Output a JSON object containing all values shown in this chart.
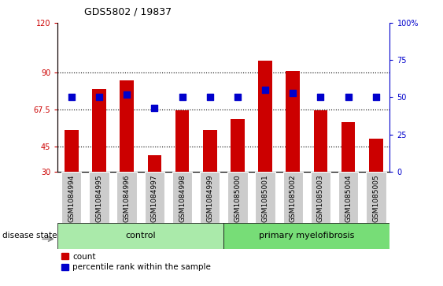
{
  "title": "GDS5802 / 19837",
  "samples": [
    "GSM1084994",
    "GSM1084995",
    "GSM1084996",
    "GSM1084997",
    "GSM1084998",
    "GSM1084999",
    "GSM1085000",
    "GSM1085001",
    "GSM1085002",
    "GSM1085003",
    "GSM1085004",
    "GSM1085005"
  ],
  "counts": [
    55,
    80,
    85,
    40,
    67,
    55,
    62,
    97,
    91,
    67,
    60,
    50
  ],
  "percentiles": [
    50,
    50,
    52,
    43,
    50,
    50,
    50,
    55,
    53,
    50,
    50,
    50
  ],
  "y_min": 30,
  "y_max": 120,
  "y_ticks": [
    30,
    45,
    67.5,
    90,
    120
  ],
  "y_tick_labels": [
    "30",
    "45",
    "67.5",
    "90",
    "120"
  ],
  "y2_ticks": [
    0,
    25,
    50,
    75,
    100
  ],
  "y2_tick_labels": [
    "0",
    "25",
    "50",
    "75",
    "100%"
  ],
  "control_count": 6,
  "primary_count": 6,
  "control_label": "control",
  "primary_label": "primary myelofibrosis",
  "disease_state_label": "disease state",
  "legend_count_label": "count",
  "legend_percentile_label": "percentile rank within the sample",
  "bar_color": "#cc0000",
  "percentile_color": "#0000cc",
  "control_bg": "#aaeaaa",
  "primary_bg": "#77dd77",
  "xtick_bg": "#cccccc",
  "bar_width": 0.5,
  "percentile_size": 40,
  "grid_linestyle": "dotted",
  "grid_color": "black",
  "grid_linewidth": 0.8,
  "grid_vals": [
    45,
    67.5,
    90
  ]
}
